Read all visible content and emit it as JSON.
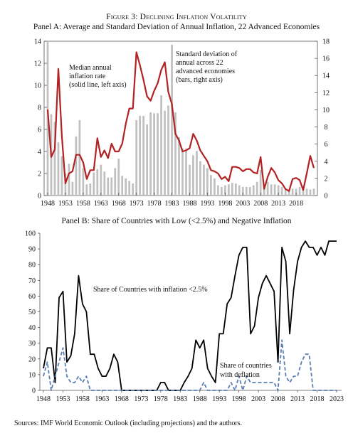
{
  "figure_title": "Figure 3: Declining Inflation Volatility",
  "panelA_title": "Panel A: Average and Standard Deviation of Annual Inflation, 22 Advanced Economies",
  "panelB_title": "Panel B: Share of Countries with Low (<2.5%) and Negative Inflation",
  "source": "Sources: IMF World Economic Outlook (including projections) and the authors.",
  "chart_data": [
    {
      "type": "bar",
      "panel": "A",
      "x_tick_labels": [
        "1948",
        "1953",
        "1958",
        "1963",
        "1968",
        "1973",
        "1978",
        "1983",
        "1988",
        "1993",
        "1998",
        "2003",
        "2008",
        "2013",
        "2018"
      ],
      "left_axis": {
        "ylim": [
          0,
          14
        ],
        "ticks": [
          0,
          2,
          4,
          6,
          8,
          10,
          12,
          14
        ]
      },
      "right_axis": {
        "ylim": [
          0,
          18
        ],
        "ticks": [
          0,
          2,
          4,
          6,
          8,
          10,
          12,
          14,
          16,
          18
        ]
      },
      "annotations": [
        [
          "Median annual",
          "inflation rate",
          "(solid line, left axis)"
        ],
        [
          "Standard deviation of",
          "annual across 22",
          "advanced economies",
          "(bars, right axis)"
        ]
      ],
      "colors": {
        "line": "#b22222",
        "bars": "#c0c0c0"
      },
      "years": [
        1948,
        1949,
        1950,
        1951,
        1952,
        1953,
        1954,
        1955,
        1956,
        1957,
        1958,
        1959,
        1960,
        1961,
        1962,
        1963,
        1964,
        1965,
        1966,
        1967,
        1968,
        1969,
        1970,
        1971,
        1972,
        1973,
        1974,
        1975,
        1976,
        1977,
        1978,
        1979,
        1980,
        1981,
        1982,
        1983,
        1984,
        1985,
        1986,
        1987,
        1988,
        1989,
        1990,
        1991,
        1992,
        1993,
        1994,
        1995,
        1996,
        1997,
        1998,
        1999,
        2000,
        2001,
        2002,
        2003,
        2004,
        2005,
        2006,
        2007,
        2008,
        2009,
        2010,
        2011,
        2012,
        2013,
        2014,
        2015,
        2016,
        2017,
        2018,
        2019,
        2020,
        2021,
        2022,
        2023
      ],
      "series": [
        {
          "axis": "right",
          "style": "bars",
          "values": [
            18,
            9.5,
            8.6,
            6.2,
            4.6,
            2.6,
            3.7,
            1.6,
            6.9,
            8.8,
            3.2,
            1.3,
            1.4,
            2.7,
            3.1,
            3.6,
            2.8,
            2.1,
            2.1,
            3.2,
            4.3,
            2.3,
            2.0,
            1.7,
            1.4,
            8.8,
            9.3,
            9.3,
            8.3,
            9.7,
            9.6,
            9.6,
            11.7,
            9.9,
            10.5,
            17.6,
            9.7,
            6.8,
            5.5,
            5.5,
            3.6,
            4.7,
            5.2,
            4.0,
            3.6,
            3.2,
            2.4,
            2.0,
            1.2,
            1.0,
            1.2,
            1.3,
            1.5,
            1.4,
            1.2,
            1.0,
            1.0,
            1.0,
            1.2,
            1.6,
            3.0,
            1.3,
            1.6,
            1.3,
            1.3,
            1.2,
            1.0,
            0.8,
            0.7,
            0.8,
            0.8,
            1.0,
            1.1,
            0.8,
            0.7,
            0.8
          ]
        },
        {
          "axis": "left",
          "style": "line",
          "values": [
            7.8,
            3.5,
            4.2,
            11.5,
            5.4,
            1.1,
            2.0,
            2.2,
            3.7,
            3.7,
            3.0,
            1.5,
            2.3,
            2.3,
            5.2,
            3.5,
            4.1,
            3.4,
            4.7,
            4.0,
            4.0,
            4.7,
            6.5,
            7.9,
            7.9,
            13.0,
            11.8,
            10.5,
            9.0,
            8.6,
            9.5,
            10.2,
            11.4,
            12.1,
            9.4,
            8.3,
            5.6,
            5.0,
            4.0,
            4.1,
            4.3,
            5.6,
            5.0,
            4.1,
            3.6,
            3.1,
            2.3,
            2.2,
            2.0,
            1.5,
            1.7,
            1.3,
            2.6,
            2.6,
            2.5,
            2.2,
            2.4,
            2.4,
            2.1,
            2.0,
            3.5,
            0.6,
            1.7,
            2.5,
            2.1,
            1.4,
            1.1,
            0.6,
            0.4,
            1.5,
            1.6,
            1.4,
            0.5,
            2.0,
            3.6,
            2.5
          ]
        }
      ]
    },
    {
      "type": "line",
      "panel": "B",
      "x_tick_labels": [
        "1948",
        "1953",
        "1958",
        "1963",
        "1968",
        "1973",
        "1978",
        "1983",
        "1988",
        "1993",
        "1998",
        "2003",
        "2008",
        "2013",
        "2018",
        "2023"
      ],
      "ylim": [
        0,
        100
      ],
      "y_ticks": [
        0,
        10,
        20,
        30,
        40,
        50,
        60,
        70,
        80,
        90,
        100
      ],
      "annotations": [
        [
          "Share of Countries with inflation <2.5%"
        ],
        [
          "Share of countries",
          "with deflation"
        ]
      ],
      "colors": {
        "low_inflation": "#000000",
        "deflation": "#5b7fb5"
      },
      "years": [
        1948,
        1949,
        1950,
        1951,
        1952,
        1953,
        1954,
        1955,
        1956,
        1957,
        1958,
        1959,
        1960,
        1961,
        1962,
        1963,
        1964,
        1965,
        1966,
        1967,
        1968,
        1969,
        1970,
        1971,
        1972,
        1973,
        1974,
        1975,
        1976,
        1977,
        1978,
        1979,
        1980,
        1981,
        1982,
        1983,
        1984,
        1985,
        1986,
        1987,
        1988,
        1989,
        1990,
        1991,
        1992,
        1993,
        1994,
        1995,
        1996,
        1997,
        1998,
        1999,
        2000,
        2001,
        2002,
        2003,
        2004,
        2005,
        2006,
        2007,
        2008,
        2009,
        2010,
        2011,
        2012,
        2013,
        2014,
        2015,
        2016,
        2017,
        2018,
        2019,
        2020,
        2021,
        2022,
        2023
      ],
      "series": [
        {
          "style": "solid",
          "values": [
            14,
            27,
            27,
            5,
            59,
            63,
            18,
            22,
            36,
            73,
            55,
            50,
            23,
            23,
            14,
            9,
            9,
            14,
            23,
            18,
            0,
            0,
            0,
            0,
            0,
            0,
            0,
            0,
            0,
            0,
            5,
            5,
            0,
            0,
            0,
            0,
            5,
            9,
            14,
            32,
            27,
            32,
            14,
            9,
            5,
            36,
            36,
            55,
            59,
            73,
            86,
            91,
            91,
            36,
            41,
            59,
            68,
            73,
            68,
            63,
            18,
            91,
            82,
            36,
            64,
            82,
            91,
            95,
            91,
            91,
            86,
            91,
            86,
            95,
            95,
            95
          ]
        },
        {
          "style": "dashed",
          "values": [
            9,
            18,
            0,
            9,
            18,
            27,
            9,
            5,
            5,
            9,
            5,
            9,
            0,
            0,
            0,
            0,
            0,
            0,
            0,
            0,
            0,
            0,
            0,
            0,
            0,
            0,
            0,
            0,
            0,
            0,
            0,
            0,
            0,
            0,
            0,
            0,
            0,
            0,
            0,
            0,
            0,
            5,
            0,
            0,
            0,
            0,
            0,
            0,
            5,
            0,
            9,
            0,
            9,
            5,
            5,
            5,
            5,
            5,
            5,
            5,
            0,
            32,
            9,
            5,
            9,
            9,
            18,
            23,
            23,
            0,
            0,
            0,
            0,
            0,
            0,
            0
          ]
        }
      ]
    }
  ]
}
